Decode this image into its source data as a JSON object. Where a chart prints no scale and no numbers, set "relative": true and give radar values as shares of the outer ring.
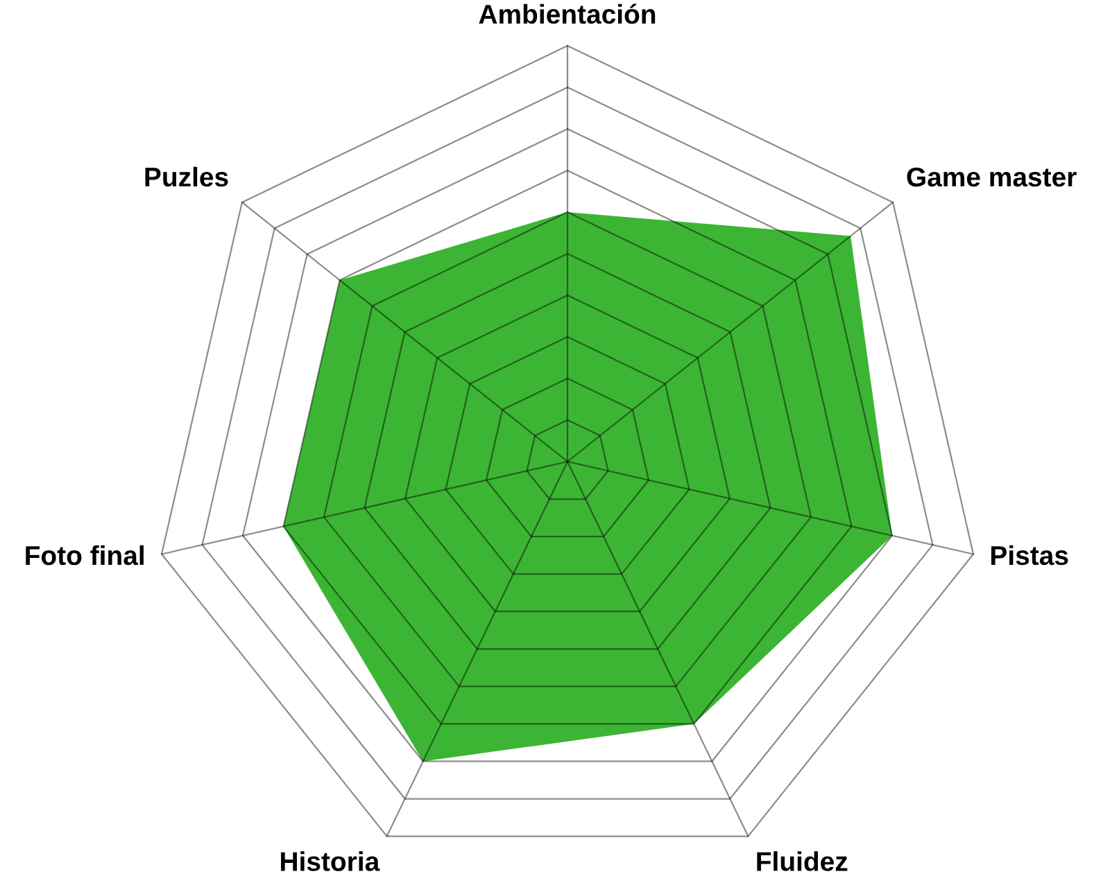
{
  "chart_data": {
    "type": "radar",
    "relative": true,
    "grid": true,
    "categories": [
      "Ambientación",
      "Game master",
      "Pistas",
      "Fluidez",
      "Historia",
      "Foto final",
      "Puzles"
    ],
    "series": [
      {
        "color": "#3cb534",
        "values": [
          0.6,
          0.87,
          0.8,
          0.7,
          0.8,
          0.7,
          0.7
        ]
      }
    ]
  }
}
